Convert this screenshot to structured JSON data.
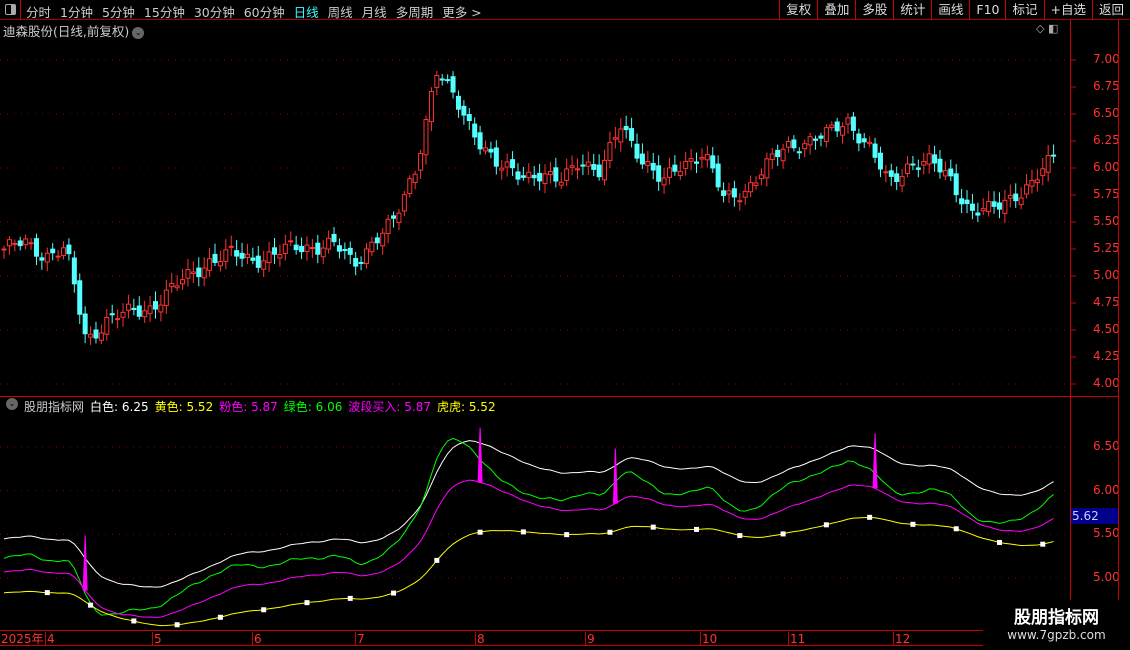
{
  "toolbar": {
    "periods": [
      "分时",
      "1分钟",
      "5分钟",
      "15分钟",
      "30分钟",
      "60分钟",
      "日线",
      "周线",
      "月线",
      "多周期",
      "更多 >"
    ],
    "active_period": "日线",
    "tools": [
      "复权",
      "叠加",
      "多股",
      "统计",
      "画线",
      "F10",
      "标记",
      "+自选",
      "返回"
    ]
  },
  "title": "迪森股份(日线,前复权)",
  "price_axis": {
    "labels": [
      "7.00",
      "6.75",
      "6.50",
      "6.25",
      "6.00",
      "5.75",
      "5.50",
      "5.25",
      "5.00",
      "4.75",
      "4.50",
      "4.25",
      "4.00"
    ]
  },
  "indicator": {
    "name": "股朋指标网",
    "items": [
      {
        "label": "白色",
        "value": "6.25",
        "color": "#ffffff"
      },
      {
        "label": "黄色",
        "value": "5.52",
        "color": "#ffff00"
      },
      {
        "label": "粉色",
        "value": "5.87",
        "color": "#ff00ff"
      },
      {
        "label": "绿色",
        "value": "6.06",
        "color": "#00ff00"
      },
      {
        "label": "波段买入",
        "value": "5.87",
        "color": "#ff00ff"
      },
      {
        "label": "虎虎",
        "value": "5.52",
        "color": "#ffff00"
      }
    ],
    "axis_labels": [
      "6.50",
      "6.00",
      "5.50",
      "5.00"
    ],
    "current": "5.62"
  },
  "x_axis": {
    "year": "2025年",
    "months": [
      "4",
      "5",
      "6",
      "7",
      "8",
      "9",
      "10",
      "11",
      "12"
    ]
  },
  "watermark": {
    "line1": "股朋指标网",
    "line2": "www.7gpzb.com"
  },
  "chart_data": {
    "type": "candlestick",
    "colors": {
      "up": "#ff3232",
      "down": "#54ffff"
    },
    "approx_close": [
      5.25,
      5.3,
      5.2,
      5.25,
      4.4,
      4.6,
      4.65,
      4.7,
      4.85,
      5.0,
      5.15,
      5.2,
      5.15,
      5.2,
      5.25,
      5.28,
      5.3,
      5.1,
      5.35,
      5.5,
      6.0,
      6.9,
      6.6,
      6.3,
      6.0,
      5.95,
      5.95,
      5.85,
      6.1,
      5.95,
      6.4,
      6.1,
      5.85,
      6.05,
      6.15,
      5.7,
      5.8,
      6.0,
      6.2,
      6.25,
      6.3,
      6.45,
      6.2,
      5.85,
      6.05,
      6.05,
      5.9,
      5.6,
      5.6,
      5.75,
      5.85,
      6.1
    ]
  }
}
